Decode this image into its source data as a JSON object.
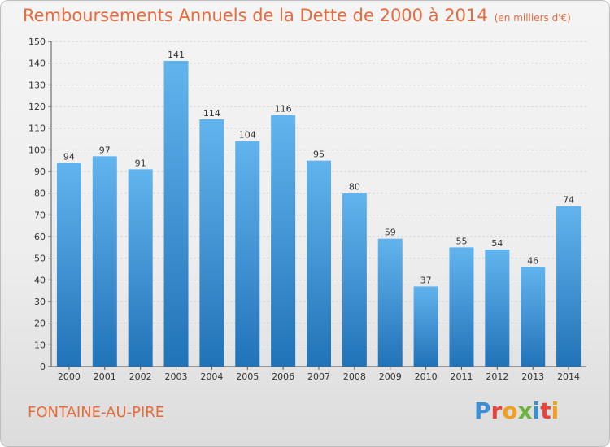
{
  "header": {
    "title": "Remboursements Annuels de la Dette de 2000 à 2014",
    "subtitle": "(en milliers d'€)"
  },
  "footer": {
    "commune": "FONTAINE-AU-PIRE",
    "logo_letters": [
      "P",
      "r",
      "o",
      "x",
      "i",
      "t",
      "i"
    ]
  },
  "colors": {
    "title": "#e96a3a",
    "bar_top": "#62b4ee",
    "bar_bottom": "#2173b8",
    "logo": [
      "#3a8fd6",
      "#e8443a",
      "#f0a020",
      "#6ab43e",
      "#3a8fd6",
      "#e8443a",
      "#f0a020"
    ]
  },
  "chart_data": {
    "type": "bar",
    "categories": [
      "2000",
      "2001",
      "2002",
      "2003",
      "2004",
      "2005",
      "2006",
      "2007",
      "2008",
      "2009",
      "2010",
      "2011",
      "2012",
      "2013",
      "2014"
    ],
    "values": [
      94,
      97,
      91,
      141,
      114,
      104,
      116,
      95,
      80,
      59,
      37,
      55,
      54,
      46,
      74
    ],
    "data_labels": [
      "94",
      "97",
      "91",
      "141",
      "114",
      "104",
      "116",
      "95",
      "80",
      "59",
      "37",
      "55",
      "54",
      "46",
      "74"
    ],
    "title": "Remboursements Annuels de la Dette de 2000 à 2014",
    "subtitle": "(en milliers d'€)",
    "xlabel": "",
    "ylabel": "",
    "ylim": [
      0,
      150
    ],
    "yticks": [
      "0",
      "10",
      "20",
      "30",
      "40",
      "50",
      "60",
      "70",
      "80",
      "90",
      "100",
      "110",
      "120",
      "130",
      "140",
      "150"
    ],
    "grid": true,
    "legend": "none"
  }
}
